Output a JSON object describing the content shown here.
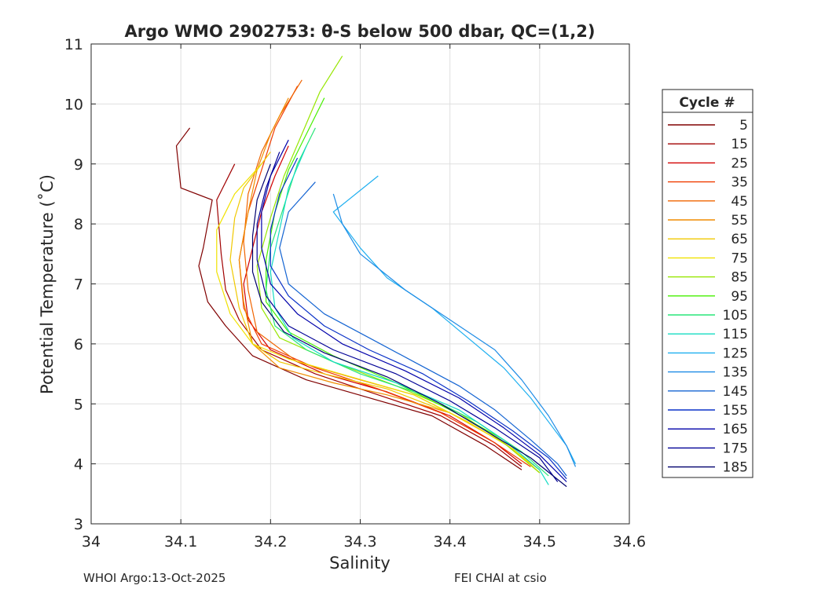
{
  "chart_data": {
    "type": "line",
    "title": "Argo WMO 2902753: θ-S below 500 dbar,  QC=(1,2)",
    "xlabel": "Salinity",
    "ylabel": "Potential Temperature (˚C)",
    "xlim": [
      34.0,
      34.6
    ],
    "ylim": [
      3,
      11
    ],
    "xticks": [
      34,
      34.1,
      34.2,
      34.3,
      34.4,
      34.5,
      34.6
    ],
    "xtick_labels": [
      "34",
      "34.1",
      "34.2",
      "34.3",
      "34.4",
      "34.5",
      "34.6"
    ],
    "yticks": [
      3,
      4,
      5,
      6,
      7,
      8,
      9,
      10,
      11
    ],
    "ytick_labels": [
      "3",
      "4",
      "5",
      "6",
      "7",
      "8",
      "9",
      "10",
      "11"
    ],
    "grid": true,
    "legend_title": "Cycle #",
    "legend_position": "right",
    "series": [
      {
        "name": "5",
        "color": "#800000",
        "points": [
          [
            34.11,
            9.6
          ],
          [
            34.095,
            9.3
          ],
          [
            34.1,
            8.6
          ],
          [
            34.135,
            8.4
          ],
          [
            34.125,
            7.6
          ],
          [
            34.12,
            7.3
          ],
          [
            34.13,
            6.7
          ],
          [
            34.15,
            6.3
          ],
          [
            34.18,
            5.8
          ],
          [
            34.24,
            5.4
          ],
          [
            34.31,
            5.1
          ],
          [
            34.38,
            4.8
          ],
          [
            34.44,
            4.3
          ],
          [
            34.48,
            3.9
          ]
        ]
      },
      {
        "name": "15",
        "color": "#A00000",
        "points": [
          [
            34.16,
            9.0
          ],
          [
            34.14,
            8.4
          ],
          [
            34.145,
            7.5
          ],
          [
            34.15,
            6.9
          ],
          [
            34.165,
            6.4
          ],
          [
            34.19,
            5.9
          ],
          [
            34.25,
            5.5
          ],
          [
            34.32,
            5.15
          ],
          [
            34.39,
            4.8
          ],
          [
            34.45,
            4.3
          ],
          [
            34.48,
            3.95
          ]
        ]
      },
      {
        "name": "25",
        "color": "#D20000",
        "points": [
          [
            34.22,
            9.3
          ],
          [
            34.205,
            8.8
          ],
          [
            34.19,
            8.2
          ],
          [
            34.18,
            7.6
          ],
          [
            34.17,
            7.0
          ],
          [
            34.175,
            6.4
          ],
          [
            34.2,
            5.9
          ],
          [
            34.26,
            5.5
          ],
          [
            34.33,
            5.2
          ],
          [
            34.4,
            4.8
          ],
          [
            34.45,
            4.35
          ],
          [
            34.48,
            4.0
          ]
        ]
      },
      {
        "name": "35",
        "color": "#F03C00",
        "points": [
          [
            34.23,
            10.3
          ],
          [
            34.205,
            9.6
          ],
          [
            34.19,
            8.9
          ],
          [
            34.175,
            8.2
          ],
          [
            34.165,
            7.4
          ],
          [
            34.17,
            6.6
          ],
          [
            34.19,
            6.0
          ],
          [
            34.25,
            5.6
          ],
          [
            34.32,
            5.25
          ],
          [
            34.39,
            4.85
          ],
          [
            34.45,
            4.35
          ],
          [
            34.49,
            3.95
          ]
        ]
      },
      {
        "name": "45",
        "color": "#F06400",
        "points": [
          [
            34.235,
            10.4
          ],
          [
            34.21,
            9.8
          ],
          [
            34.19,
            9.2
          ],
          [
            34.175,
            8.5
          ],
          [
            34.17,
            7.7
          ],
          [
            34.175,
            6.9
          ],
          [
            34.185,
            6.2
          ],
          [
            34.23,
            5.7
          ],
          [
            34.3,
            5.4
          ],
          [
            34.36,
            5.15
          ],
          [
            34.42,
            4.7
          ],
          [
            34.47,
            4.25
          ],
          [
            34.5,
            3.85
          ]
        ]
      },
      {
        "name": "55",
        "color": "#F08C00",
        "points": [
          [
            34.22,
            10.1
          ],
          [
            34.2,
            9.5
          ],
          [
            34.185,
            8.9
          ],
          [
            34.175,
            8.2
          ],
          [
            34.165,
            7.4
          ],
          [
            34.17,
            6.7
          ],
          [
            34.18,
            6.0
          ],
          [
            34.21,
            5.6
          ],
          [
            34.27,
            5.35
          ],
          [
            34.33,
            5.15
          ],
          [
            34.4,
            4.85
          ],
          [
            34.46,
            4.35
          ],
          [
            34.5,
            3.9
          ]
        ]
      },
      {
        "name": "65",
        "color": "#F0C800",
        "points": [
          [
            34.2,
            9.2
          ],
          [
            34.17,
            8.6
          ],
          [
            34.16,
            8.1
          ],
          [
            34.155,
            7.4
          ],
          [
            34.165,
            6.6
          ],
          [
            34.18,
            6.0
          ],
          [
            34.21,
            5.7
          ],
          [
            34.26,
            5.5
          ],
          [
            34.33,
            5.25
          ],
          [
            34.4,
            4.85
          ],
          [
            34.46,
            4.35
          ],
          [
            34.5,
            3.9
          ]
        ]
      },
      {
        "name": "75",
        "color": "#F0E100",
        "points": [
          [
            34.19,
            9.0
          ],
          [
            34.16,
            8.5
          ],
          [
            34.14,
            7.9
          ],
          [
            34.14,
            7.2
          ],
          [
            34.155,
            6.5
          ],
          [
            34.18,
            6.0
          ],
          [
            34.22,
            5.75
          ],
          [
            34.29,
            5.45
          ],
          [
            34.36,
            5.15
          ],
          [
            34.42,
            4.7
          ],
          [
            34.47,
            4.25
          ],
          [
            34.5,
            3.85
          ]
        ]
      },
      {
        "name": "85",
        "color": "#96E600",
        "points": [
          [
            34.28,
            10.8
          ],
          [
            34.255,
            10.2
          ],
          [
            34.235,
            9.5
          ],
          [
            34.215,
            8.8
          ],
          [
            34.2,
            8.1
          ],
          [
            34.185,
            7.3
          ],
          [
            34.19,
            6.6
          ],
          [
            34.21,
            6.1
          ],
          [
            34.27,
            5.7
          ],
          [
            34.34,
            5.3
          ],
          [
            34.41,
            4.85
          ],
          [
            34.46,
            4.35
          ],
          [
            34.5,
            3.85
          ]
        ]
      },
      {
        "name": "95",
        "color": "#46F000",
        "points": [
          [
            34.26,
            10.1
          ],
          [
            34.24,
            9.5
          ],
          [
            34.22,
            8.9
          ],
          [
            34.205,
            8.2
          ],
          [
            34.195,
            7.4
          ],
          [
            34.195,
            6.7
          ],
          [
            34.22,
            6.2
          ],
          [
            34.27,
            5.8
          ],
          [
            34.34,
            5.35
          ],
          [
            34.4,
            4.9
          ],
          [
            34.46,
            4.4
          ],
          [
            34.5,
            3.9
          ]
        ]
      },
      {
        "name": "105",
        "color": "#28E678",
        "points": [
          [
            34.25,
            9.6
          ],
          [
            34.23,
            9.0
          ],
          [
            34.215,
            8.3
          ],
          [
            34.2,
            7.6
          ],
          [
            34.195,
            6.9
          ],
          [
            34.205,
            6.3
          ],
          [
            34.24,
            5.9
          ],
          [
            34.3,
            5.5
          ],
          [
            34.37,
            5.15
          ],
          [
            34.43,
            4.7
          ],
          [
            34.48,
            4.2
          ],
          [
            34.51,
            3.8
          ]
        ]
      },
      {
        "name": "115",
        "color": "#14DCC3",
        "points": [
          [
            34.24,
            9.3
          ],
          [
            34.22,
            8.6
          ],
          [
            34.21,
            7.9
          ],
          [
            34.2,
            7.2
          ],
          [
            34.205,
            6.6
          ],
          [
            34.225,
            6.1
          ],
          [
            34.27,
            5.7
          ],
          [
            34.34,
            5.35
          ],
          [
            34.41,
            4.9
          ],
          [
            34.46,
            4.4
          ],
          [
            34.5,
            3.9
          ],
          [
            34.51,
            3.65
          ]
        ]
      },
      {
        "name": "125",
        "color": "#1EAFF0",
        "points": [
          [
            34.32,
            8.8
          ],
          [
            34.27,
            8.2
          ],
          [
            34.3,
            7.6
          ],
          [
            34.33,
            7.1
          ],
          [
            34.38,
            6.6
          ],
          [
            34.42,
            6.1
          ],
          [
            34.46,
            5.6
          ],
          [
            34.49,
            5.1
          ],
          [
            34.51,
            4.7
          ],
          [
            34.53,
            4.3
          ],
          [
            34.54,
            4.0
          ]
        ]
      },
      {
        "name": "135",
        "color": "#1E8CE6",
        "points": [
          [
            34.27,
            8.5
          ],
          [
            34.28,
            8.0
          ],
          [
            34.3,
            7.5
          ],
          [
            34.35,
            6.9
          ],
          [
            34.4,
            6.4
          ],
          [
            34.45,
            5.9
          ],
          [
            34.48,
            5.4
          ],
          [
            34.51,
            4.8
          ],
          [
            34.53,
            4.3
          ],
          [
            34.54,
            3.95
          ]
        ]
      },
      {
        "name": "145",
        "color": "#1464D2",
        "points": [
          [
            34.25,
            8.7
          ],
          [
            34.22,
            8.2
          ],
          [
            34.21,
            7.6
          ],
          [
            34.22,
            7.0
          ],
          [
            34.26,
            6.5
          ],
          [
            34.31,
            6.1
          ],
          [
            34.36,
            5.7
          ],
          [
            34.41,
            5.3
          ],
          [
            34.45,
            4.9
          ],
          [
            34.49,
            4.4
          ],
          [
            34.52,
            4.0
          ],
          [
            34.53,
            3.8
          ]
        ]
      },
      {
        "name": "155",
        "color": "#0A32C8",
        "points": [
          [
            34.23,
            9.1
          ],
          [
            34.21,
            8.5
          ],
          [
            34.2,
            7.9
          ],
          [
            34.2,
            7.3
          ],
          [
            34.22,
            6.8
          ],
          [
            34.26,
            6.3
          ],
          [
            34.31,
            5.9
          ],
          [
            34.37,
            5.5
          ],
          [
            34.42,
            5.05
          ],
          [
            34.47,
            4.55
          ],
          [
            34.51,
            4.1
          ],
          [
            34.53,
            3.75
          ]
        ]
      },
      {
        "name": "165",
        "color": "#0000AA",
        "points": [
          [
            34.22,
            9.4
          ],
          [
            34.2,
            8.8
          ],
          [
            34.19,
            8.2
          ],
          [
            34.19,
            7.6
          ],
          [
            34.2,
            7.0
          ],
          [
            34.23,
            6.5
          ],
          [
            34.28,
            6.0
          ],
          [
            34.35,
            5.55
          ],
          [
            34.41,
            5.1
          ],
          [
            34.46,
            4.6
          ],
          [
            34.5,
            4.15
          ],
          [
            34.53,
            3.7
          ]
        ]
      },
      {
        "name": "175",
        "color": "#000096",
        "points": [
          [
            34.21,
            9.2
          ],
          [
            34.195,
            8.6
          ],
          [
            34.185,
            8.0
          ],
          [
            34.185,
            7.4
          ],
          [
            34.195,
            6.8
          ],
          [
            34.22,
            6.3
          ],
          [
            34.27,
            5.9
          ],
          [
            34.34,
            5.5
          ],
          [
            34.4,
            5.05
          ],
          [
            34.45,
            4.6
          ],
          [
            34.5,
            4.1
          ],
          [
            34.52,
            3.7
          ]
        ]
      },
      {
        "name": "185",
        "color": "#00006E",
        "points": [
          [
            34.2,
            9.0
          ],
          [
            34.185,
            8.4
          ],
          [
            34.18,
            7.8
          ],
          [
            34.18,
            7.2
          ],
          [
            34.19,
            6.7
          ],
          [
            34.215,
            6.2
          ],
          [
            34.26,
            5.85
          ],
          [
            34.33,
            5.45
          ],
          [
            34.39,
            5.0
          ],
          [
            34.44,
            4.55
          ],
          [
            34.49,
            4.1
          ],
          [
            34.53,
            3.62
          ]
        ]
      }
    ]
  },
  "footer": {
    "left": "WHOI Argo:13-Oct-2025",
    "right": "FEI CHAI at csio"
  }
}
